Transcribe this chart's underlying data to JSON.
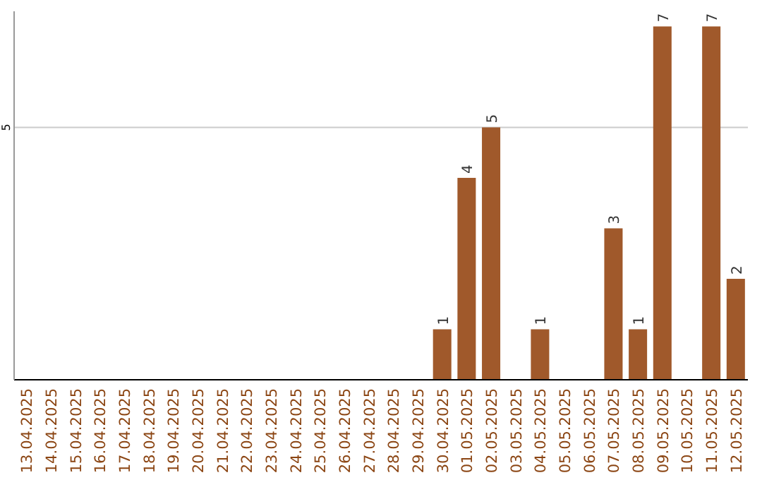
{
  "chart_data": {
    "type": "bar",
    "categories": [
      "13.04.2025",
      "14.04.2025",
      "15.04.2025",
      "16.04.2025",
      "17.04.2025",
      "18.04.2025",
      "19.04.2025",
      "20.04.2025",
      "21.04.2025",
      "22.04.2025",
      "23.04.2025",
      "24.04.2025",
      "25.04.2025",
      "26.04.2025",
      "27.04.2025",
      "28.04.2025",
      "29.04.2025",
      "30.04.2025",
      "01.05.2025",
      "02.05.2025",
      "03.05.2025",
      "04.05.2025",
      "05.05.2025",
      "06.05.2025",
      "07.05.2025",
      "08.05.2025",
      "09.05.2025",
      "10.05.2025",
      "11.05.2025",
      "12.05.2025"
    ],
    "values": [
      null,
      null,
      null,
      null,
      null,
      null,
      null,
      null,
      null,
      null,
      null,
      null,
      null,
      null,
      null,
      null,
      null,
      1,
      4,
      5,
      null,
      1,
      null,
      null,
      3,
      1,
      7,
      null,
      7,
      2
    ],
    "data_labels": true,
    "color": "#a0592b",
    "ylim": [
      0,
      7.3
    ],
    "ref_lines": [
      {
        "axis": "y",
        "value": 5,
        "label": "5",
        "color": "#cccccc"
      }
    ]
  }
}
